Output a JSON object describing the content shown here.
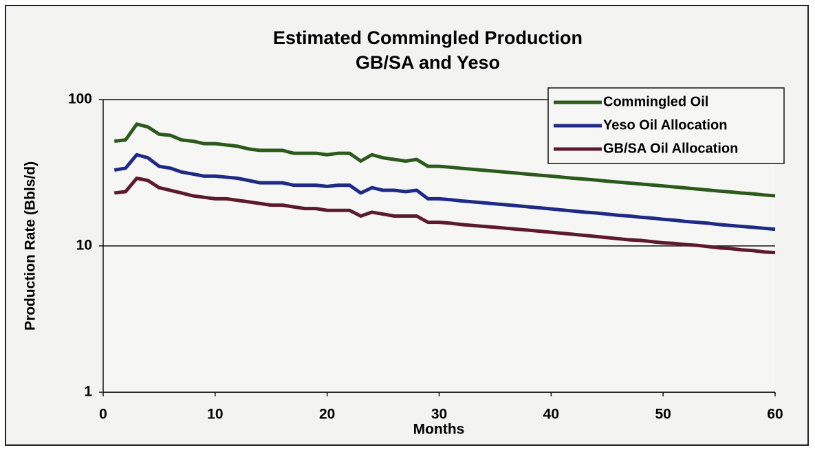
{
  "chart_data": {
    "type": "line",
    "title": "Estimated Commingled Production",
    "subtitle": "GB/SA and Yeso",
    "x_label": "Months",
    "y_label": "Production Rate (Bbls/d)",
    "log_y": true,
    "grid": true,
    "legend_position": "upper-right",
    "x": [
      1,
      2,
      3,
      4,
      5,
      6,
      7,
      8,
      9,
      10,
      11,
      12,
      13,
      14,
      15,
      16,
      17,
      18,
      19,
      20,
      21,
      22,
      23,
      24,
      25,
      26,
      27,
      28,
      29,
      30,
      31,
      32,
      33,
      34,
      35,
      36,
      37,
      38,
      39,
      40,
      41,
      42,
      43,
      44,
      45,
      46,
      47,
      48,
      49,
      50,
      51,
      52,
      53,
      54,
      55,
      56,
      57,
      58,
      59,
      60
    ],
    "xlim": [
      0,
      60
    ],
    "xticks": [
      0,
      10,
      20,
      30,
      40,
      50,
      60
    ],
    "ylim": [
      1,
      100
    ],
    "yticks": [
      1,
      10,
      100
    ],
    "series": [
      {
        "name": "Commingled Oil",
        "color": "#2b5a1c",
        "values": [
          52,
          53,
          68,
          65,
          58,
          57,
          53,
          52,
          50,
          50,
          49,
          48,
          46,
          45,
          45,
          45,
          43,
          43,
          43,
          42,
          43,
          43,
          38,
          42,
          40,
          39,
          38,
          39,
          35,
          35,
          34.5,
          33.9,
          33.4,
          32.9,
          32.4,
          31.9,
          31.4,
          30.9,
          30.4,
          30.0,
          29.5,
          29.0,
          28.6,
          28.2,
          27.7,
          27.3,
          26.9,
          26.5,
          26.1,
          25.7,
          25.3,
          24.9,
          24.5,
          24.1,
          23.7,
          23.4,
          23.0,
          22.7,
          22.3,
          22.0
        ]
      },
      {
        "name": "Yeso Oil Allocation",
        "color": "#1f2a86",
        "values": [
          33,
          34,
          42,
          40,
          35,
          34,
          32,
          31,
          30,
          30,
          29.5,
          29,
          28,
          27,
          27,
          27,
          26,
          26,
          26,
          25.5,
          26,
          26,
          23,
          25,
          24,
          24,
          23.5,
          24,
          21,
          21,
          20.7,
          20.3,
          20.0,
          19.7,
          19.4,
          19.1,
          18.8,
          18.5,
          18.2,
          17.9,
          17.6,
          17.3,
          17.0,
          16.8,
          16.5,
          16.2,
          16.0,
          15.7,
          15.5,
          15.2,
          15.0,
          14.7,
          14.5,
          14.3,
          14.0,
          13.8,
          13.6,
          13.4,
          13.2,
          13.0
        ]
      },
      {
        "name": "GB/SA Oil Allocation",
        "color": "#5c1a2c",
        "values": [
          23,
          23.5,
          29,
          28,
          25,
          24,
          23,
          22,
          21.5,
          21,
          21,
          20.5,
          20,
          19.5,
          19,
          19,
          18.5,
          18,
          18,
          17.5,
          17.5,
          17.5,
          16,
          17,
          16.5,
          16,
          16,
          16,
          14.5,
          14.5,
          14.3,
          14.0,
          13.8,
          13.6,
          13.4,
          13.2,
          13.0,
          12.8,
          12.6,
          12.4,
          12.2,
          12.0,
          11.8,
          11.6,
          11.4,
          11.2,
          11.0,
          10.9,
          10.7,
          10.5,
          10.4,
          10.2,
          10.1,
          9.9,
          9.7,
          9.6,
          9.4,
          9.3,
          9.1,
          9.0
        ]
      }
    ]
  }
}
